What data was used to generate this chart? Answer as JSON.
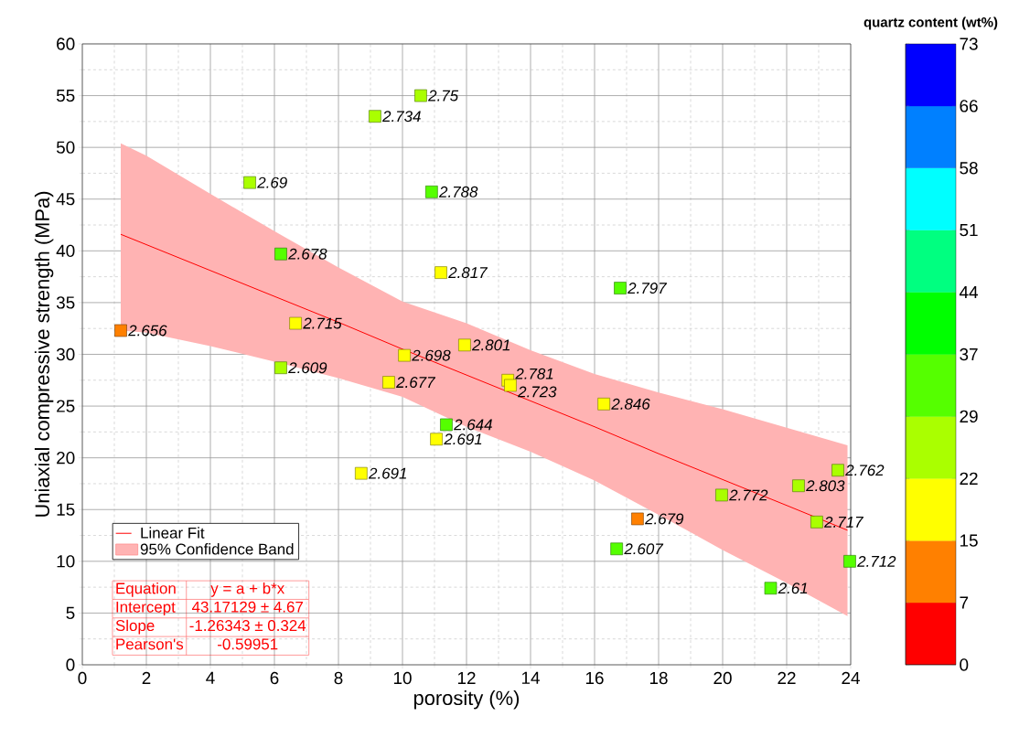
{
  "chart_data": {
    "type": "scatter",
    "xlabel": "porosity (%)",
    "ylabel": "Uniaxial compressive strength (MPa)",
    "clabel": "quartz content (wt%)",
    "xlim": [
      0,
      24
    ],
    "xticks": [
      0,
      2,
      4,
      6,
      8,
      10,
      12,
      14,
      16,
      18,
      20,
      22,
      24
    ],
    "ylim": [
      0,
      60
    ],
    "yticks": [
      0,
      5,
      10,
      15,
      20,
      25,
      30,
      35,
      40,
      45,
      50,
      55,
      60
    ],
    "clim": [
      0,
      73
    ],
    "cticks": [
      0,
      {
        "value": 7.3,
        "label": "7"
      },
      {
        "value": 14.6,
        "label": "15"
      },
      {
        "value": 21.9,
        "label": "22"
      },
      {
        "value": 29.2,
        "label": "29"
      },
      {
        "value": 36.5,
        "label": "37"
      },
      {
        "value": 43.8,
        "label": "44"
      },
      {
        "value": 51.1,
        "label": "51"
      },
      {
        "value": 58.4,
        "label": "58"
      },
      {
        "value": 65.7,
        "label": "66"
      },
      73
    ],
    "grid": true,
    "legend": "bottom left",
    "series": [
      {
        "type": "line",
        "name": "Linear Fit",
        "color": "#ff0000",
        "x": [
          1.2,
          2,
          4,
          6,
          8,
          10,
          12,
          14,
          16,
          18,
          20,
          22,
          23.9
        ],
        "values": [
          41.6,
          40.6,
          38.1,
          35.6,
          33.1,
          30.5,
          28.0,
          25.5,
          23.0,
          20.4,
          17.9,
          15.4,
          13.0
        ],
        "lower": [
          32.3,
          32.1,
          30.8,
          29.3,
          27.7,
          25.9,
          23.0,
          20.6,
          17.8,
          14.5,
          11.1,
          7.9,
          4.7
        ],
        "upper": [
          50.4,
          49.2,
          45.5,
          41.9,
          38.4,
          35.1,
          33.0,
          30.4,
          28.1,
          26.3,
          24.7,
          22.9,
          21.2
        ]
      },
      {
        "marker": "square",
        "colors": [
          "#ff8000",
          "#aaff00",
          "#aaff00",
          "#aaff00",
          "#55ff00",
          "#55ff00",
          "#ffff00",
          "#55ff00",
          "#ffff00",
          "#aaff00",
          "#ffff00",
          "#ffff00",
          "#ffff00",
          "#ffff00",
          "#ffff00",
          "#ffff00",
          "#55ff00",
          "#ffff00",
          "#ffff00",
          "#aaff00",
          "#aaff00",
          "#aaff00",
          "#aaff00",
          "#ff8000",
          "#55ff00",
          "#55ff00",
          "#55ff00"
        ],
        "x": [
          1.2,
          5.23,
          9.14,
          10.57,
          10.91,
          6.2,
          11.2,
          16.8,
          6.66,
          6.2,
          10.06,
          9.57,
          11.94,
          13.29,
          13.37,
          16.29,
          11.37,
          11.06,
          8.71,
          19.97,
          22.37,
          23.6,
          22.94,
          17.34,
          16.69,
          23.97,
          21.5
        ],
        "values": [
          32.3,
          46.6,
          53.0,
          55.0,
          45.7,
          39.7,
          37.9,
          36.4,
          33.0,
          28.7,
          29.9,
          27.3,
          30.9,
          27.5,
          27.0,
          25.2,
          23.2,
          21.8,
          18.5,
          16.4,
          17.3,
          18.8,
          13.8,
          14.1,
          11.2,
          10.0,
          7.4
        ],
        "cvalues": [
          11,
          25,
          25,
          25,
          33,
          35,
          19,
          33,
          18,
          25,
          18,
          16,
          18,
          18,
          18,
          16,
          33,
          19,
          19,
          27,
          27,
          27,
          27,
          11,
          33,
          30,
          33
        ]
      }
    ],
    "annotations": [
      {
        "text": "2.656",
        "x": 1.2,
        "y": 32.3
      },
      {
        "text": "2.69",
        "x": 5.23,
        "y": 46.6
      },
      {
        "text": "2.734",
        "x": 9.14,
        "y": 53.0
      },
      {
        "text": "2.75",
        "x": 10.57,
        "y": 55.0
      },
      {
        "text": "2.788",
        "x": 10.91,
        "y": 45.7
      },
      {
        "text": "2.678",
        "x": 6.2,
        "y": 39.7
      },
      {
        "text": "2.817",
        "x": 11.2,
        "y": 37.9
      },
      {
        "text": "2.797",
        "x": 16.8,
        "y": 36.4
      },
      {
        "text": "2.715",
        "x": 6.66,
        "y": 33.0
      },
      {
        "text": "2.609",
        "x": 6.2,
        "y": 28.7
      },
      {
        "text": "2.698",
        "x": 10.06,
        "y": 29.9
      },
      {
        "text": "2.677",
        "x": 9.57,
        "y": 27.3
      },
      {
        "text": "2.801",
        "x": 11.94,
        "y": 30.9
      },
      {
        "text": "2.781",
        "x": 13.29,
        "y": 27.5
      },
      {
        "text": "2.723",
        "x": 13.37,
        "y": 27.0
      },
      {
        "text": "2.846",
        "x": 16.29,
        "y": 25.2
      },
      {
        "text": "2.644",
        "x": 11.37,
        "y": 23.2
      },
      {
        "text": "2.691",
        "x": 11.06,
        "y": 21.8
      },
      {
        "text": "2.691",
        "x": 8.71,
        "y": 18.5
      },
      {
        "text": "2.772",
        "x": 19.97,
        "y": 16.4
      },
      {
        "text": "2.803",
        "x": 22.37,
        "y": 17.3
      },
      {
        "text": "2.762",
        "x": 23.6,
        "y": 18.8
      },
      {
        "text": "2.717",
        "x": 22.94,
        "y": 13.8
      },
      {
        "text": "2.679",
        "x": 17.34,
        "y": 14.1
      },
      {
        "text": "2.607",
        "x": 16.69,
        "y": 11.2
      },
      {
        "text": "2.712",
        "x": 23.97,
        "y": 10.0
      },
      {
        "text": "2.61",
        "x": 21.5,
        "y": 7.4
      },
      "95% Confidence Band",
      "Equation",
      "y = a + b*x",
      "Intercept",
      "43.17129 ± 4.67",
      "Slope",
      "-1.26343 ± 0.324",
      "Pearson's",
      "-0.59951"
    ]
  }
}
